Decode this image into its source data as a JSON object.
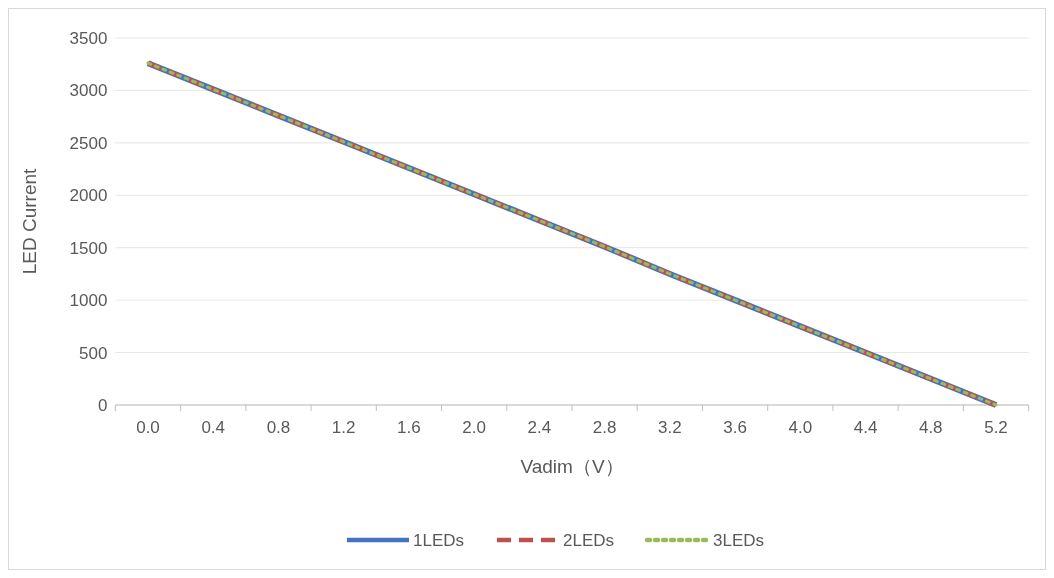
{
  "chart_data": {
    "type": "line",
    "xlabel": "Vadim（V）",
    "ylabel": "LED Current",
    "categories": [
      "0.0",
      "0.4",
      "0.8",
      "1.2",
      "1.6",
      "2.0",
      "2.4",
      "2.8",
      "3.2",
      "3.6",
      "4.0",
      "4.4",
      "4.8",
      "5.2"
    ],
    "series": [
      {
        "name": "1LEDs",
        "color": "#4472c4",
        "line_style": "solid",
        "values": [
          3260,
          3010,
          2760,
          2510,
          2260,
          2010,
          1760,
          1510,
          1250,
          1000,
          750,
          500,
          250,
          0
        ]
      },
      {
        "name": "2LEDs",
        "color": "#c0504d",
        "line_style": "dashed",
        "values": [
          3260,
          3010,
          2760,
          2510,
          2260,
          2010,
          1760,
          1510,
          1250,
          1000,
          750,
          500,
          250,
          0
        ]
      },
      {
        "name": "3LEDs",
        "color": "#9bbb59",
        "line_style": "dotted",
        "values": [
          3260,
          3010,
          2760,
          2510,
          2260,
          2010,
          1760,
          1510,
          1250,
          1000,
          750,
          500,
          250,
          0
        ]
      }
    ],
    "ylim": [
      0,
      3500
    ],
    "yticks": [
      0,
      500,
      1000,
      1500,
      2000,
      2500,
      3000,
      3500
    ],
    "grid": "y",
    "legend": "bottom",
    "marker": "none"
  }
}
